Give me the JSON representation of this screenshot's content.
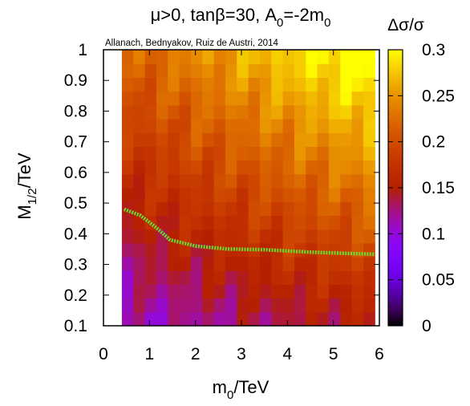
{
  "chart_data": {
    "type": "heatmap",
    "title": "μ>0, tanβ=30, A",
    "title_sub": "0",
    "title_tail": "=-2m",
    "title_tail_sub": "0",
    "annotation": "Allanach, Bednyakov, Ruiz de Austri, 2014",
    "xlabel_main": "m",
    "xlabel_sub": "0",
    "xlabel_tail": "/TeV",
    "ylabel_main": "M",
    "ylabel_sub": "1/2",
    "ylabel_tail": "/TeV",
    "colorbar_label": "Δσ/σ",
    "xlim": [
      0,
      6
    ],
    "ylim": [
      0.1,
      1.0
    ],
    "x_ticks": [
      "0",
      "1",
      "2",
      "3",
      "4",
      "5",
      "6"
    ],
    "y_ticks": [
      "0.1",
      "0.2",
      "0.3",
      "0.4",
      "0.5",
      "0.6",
      "0.7",
      "0.8",
      "0.9",
      "1"
    ],
    "colorbar_ticks": [
      "0",
      "0.05",
      "0.1",
      "0.15",
      "0.2",
      "0.25",
      "0.3"
    ],
    "colorbar_range": [
      0,
      0.3
    ],
    "grid": false,
    "colormap": "gnuplot pm3d (black-purple-red-orange-yellow)",
    "data_extent": {
      "x": [
        0.4,
        5.9
      ],
      "y": [
        0.1,
        1.0
      ]
    },
    "grid_cells": {
      "nx": 22,
      "ny": 20
    },
    "contour_color": "#66dd33",
    "contour": [
      {
        "x": 0.45,
        "y": 0.48
      },
      {
        "x": 0.8,
        "y": 0.46
      },
      {
        "x": 1.15,
        "y": 0.42
      },
      {
        "x": 1.45,
        "y": 0.38
      },
      {
        "x": 2.0,
        "y": 0.36
      },
      {
        "x": 2.7,
        "y": 0.35
      },
      {
        "x": 3.5,
        "y": 0.348
      },
      {
        "x": 4.5,
        "y": 0.34
      },
      {
        "x": 5.9,
        "y": 0.333
      }
    ]
  }
}
